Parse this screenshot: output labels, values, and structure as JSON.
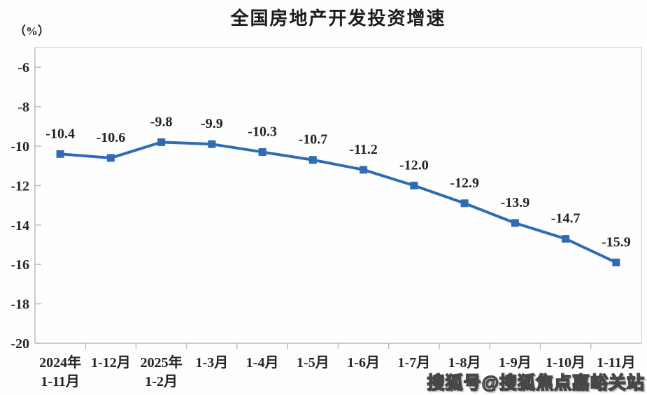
{
  "title": "全国房地产开发投资增速",
  "unit_label": "（%）",
  "watermark": "搜狐号@搜狐焦点嘉峪关站",
  "colors": {
    "line": "#2E6CB4",
    "marker": "#2E6CB4",
    "axis": "#b6bdc5",
    "border": "#cfd4d9",
    "text": "#242424",
    "title_text": "#1c1c1c"
  },
  "chart_data": {
    "type": "line",
    "title": "全国房地产开发投资增速",
    "ylabel": "（%）",
    "xlabel": "",
    "categories": [
      [
        "2024年",
        "1-11月"
      ],
      [
        "1-12月"
      ],
      [
        "2025年",
        "1-2月"
      ],
      [
        "1-3月"
      ],
      [
        "1-4月"
      ],
      [
        "1-5月"
      ],
      [
        "1-6月"
      ],
      [
        "1-7月"
      ],
      [
        "1-8月"
      ],
      [
        "1-9月"
      ],
      [
        "1-10月"
      ],
      [
        "1-11月"
      ]
    ],
    "series": [
      {
        "name": "全国房地产开发投资增速",
        "values": [
          -10.4,
          -10.6,
          -9.8,
          -9.9,
          -10.3,
          -10.7,
          -11.2,
          -12.0,
          -12.9,
          -13.9,
          -14.7,
          -15.9
        ],
        "labels": [
          "-10.4",
          "-10.6",
          "-9.8",
          "-9.9",
          "-10.3",
          "-10.7",
          "-11.2",
          "-12.0",
          "-12.9",
          "-13.9",
          "-14.7",
          "-15.9"
        ]
      }
    ],
    "yticks": [
      -6,
      -8,
      -10,
      -12,
      -14,
      -16,
      -18,
      -20
    ],
    "ylim": [
      -20,
      -5
    ],
    "grid": false,
    "legend_position": "none",
    "marker": "square"
  }
}
